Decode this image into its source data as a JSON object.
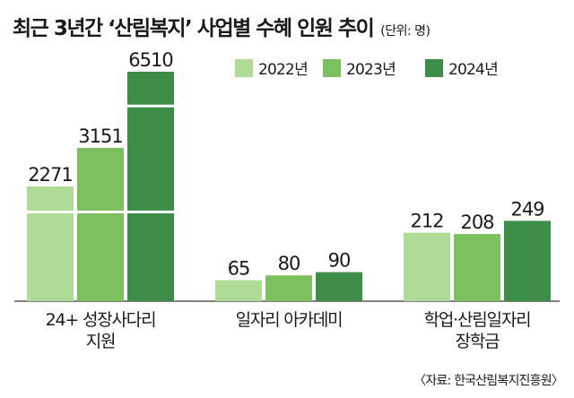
{
  "header": {
    "title": "최근 3년간 ‘산림복지’ 사업별 수혜 인원 추이",
    "unit": "(단위: 명)"
  },
  "source": "〈자료: 한국산림복지진흥원〉",
  "colors": {
    "series_2022": "#aedb96",
    "series_2023": "#7cbf5e",
    "series_2024": "#3d8d48",
    "axis": "#555555",
    "text": "#1a1a1a",
    "background": "#ffffff"
  },
  "chart_data": {
    "type": "bar",
    "title": "최근 3년간 ‘산림복지’ 사업별 수혜 인원 추이",
    "unit": "명",
    "categories": [
      [
        "24+ 성장사다리",
        "지원"
      ],
      [
        "일자리 아카데미"
      ],
      [
        "학업·산림일자리",
        "장학금"
      ]
    ],
    "series": [
      {
        "name": "2022년",
        "values": [
          2271,
          65,
          212
        ]
      },
      {
        "name": "2023년",
        "values": [
          3151,
          80,
          208
        ]
      },
      {
        "name": "2024년",
        "values": [
          6510,
          90,
          249
        ]
      }
    ],
    "legend_position": "top-right",
    "axis_break": "broken bars on large values",
    "grid": false
  }
}
